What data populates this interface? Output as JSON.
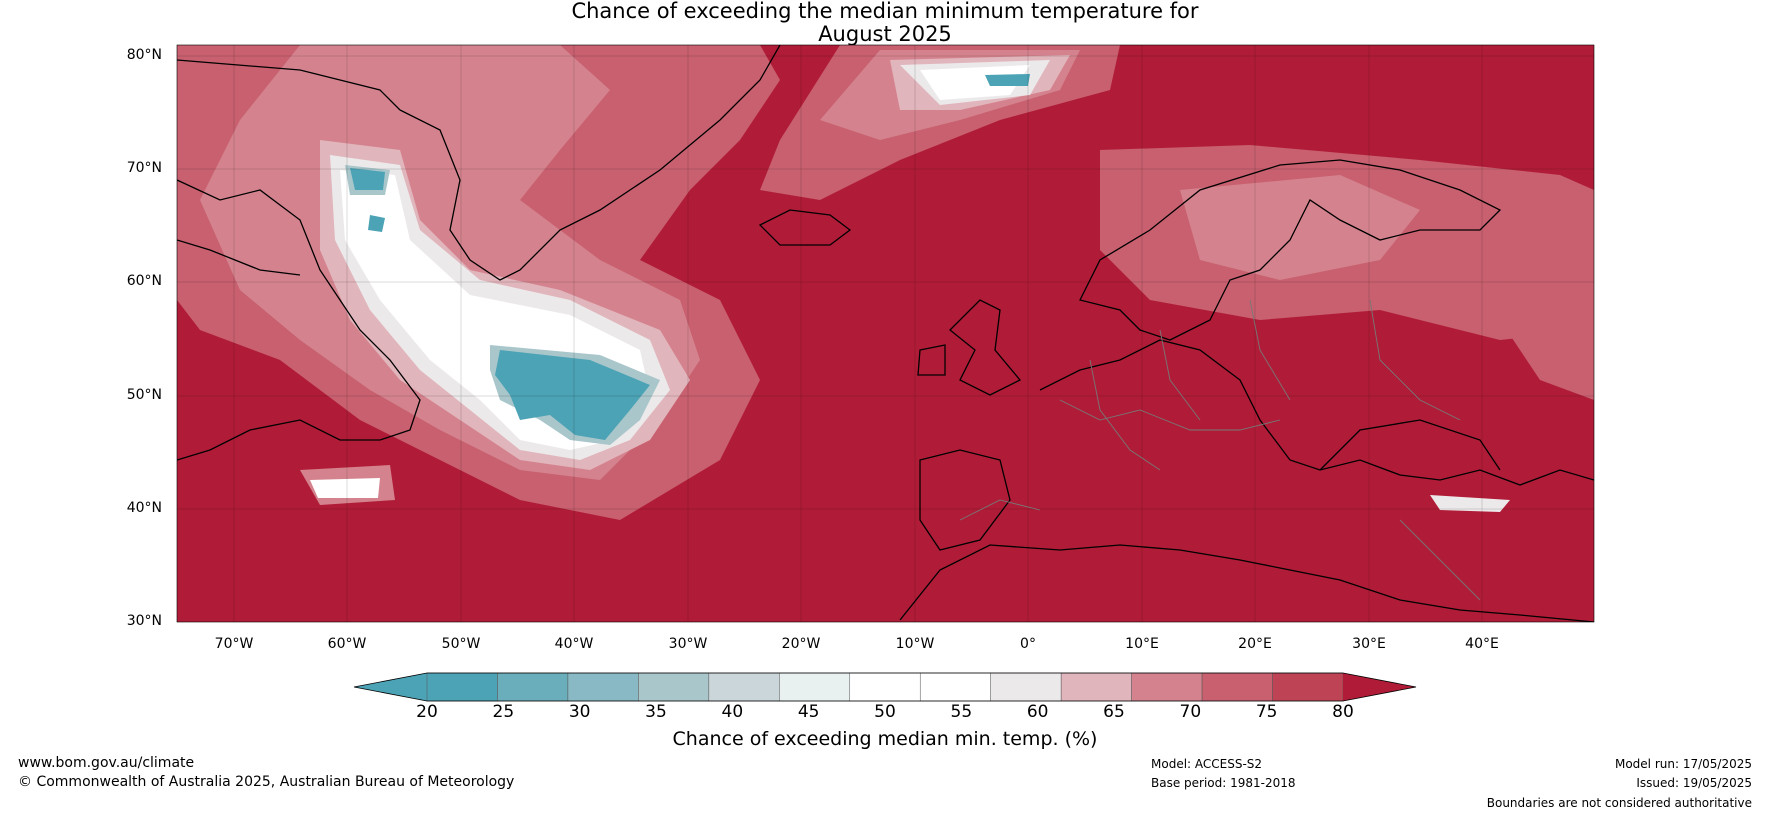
{
  "title": {
    "line1": "Chance of exceeding the median minimum temperature for",
    "line2": "August 2025"
  },
  "map": {
    "latitude_labels": [
      "80°N",
      "70°N",
      "60°N",
      "50°N",
      "40°N",
      "30°N"
    ],
    "longitude_labels": [
      "70°W",
      "60°W",
      "50°W",
      "40°W",
      "30°W",
      "20°W",
      "10°W",
      "0°",
      "10°E",
      "20°E",
      "30°E",
      "40°E"
    ],
    "extent": {
      "lon_min": -75,
      "lon_max": 50,
      "lat_min": 30,
      "lat_max": 81
    },
    "background_color": "#b01c37"
  },
  "colorbar": {
    "tick_labels": [
      "20",
      "25",
      "30",
      "35",
      "40",
      "45",
      "50",
      "55",
      "60",
      "65",
      "70",
      "75",
      "80"
    ],
    "colors": [
      "#4ba3b5",
      "#6aadbb",
      "#89b9c4",
      "#a9c6cb",
      "#cbd6da",
      "#e8f0f0",
      "#ffffff",
      "#ffffff",
      "#ece9eb",
      "#e1b5bc",
      "#d4838e",
      "#c8606f",
      "#be4455"
    ],
    "under_color": "#4ba3b5",
    "over_color": "#b01c37",
    "label": "Chance of exceeding median min. temp. (%)"
  },
  "footer": {
    "website": "www.bom.gov.au/climate",
    "copyright": "© Commonwealth of Australia 2025, Australian Bureau of Meteorology",
    "model": "Model: ACCESS-S2",
    "base_period": "Base period: 1981-2018",
    "model_run": "Model run: 17/05/2025",
    "issued": "Issued: 19/05/2025",
    "disclaimer": "Boundaries are not considered authoritative"
  }
}
